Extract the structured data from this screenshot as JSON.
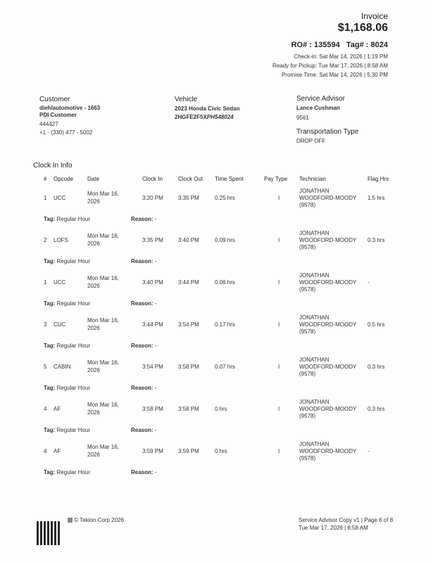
{
  "header": {
    "title": "Invoice",
    "total": "$1,168.06",
    "ro": "RO# : 135594",
    "tag": "Tag# : 8024",
    "check_in": "Check-in: Sat Mar 14, 2026 | 1:19 PM",
    "ready": "Ready for Pickup: Tue Mar 17, 2026 | 8:58 AM",
    "promise": "Promise Time: Sat Mar 14, 2026 | 5:30 PM"
  },
  "customer": {
    "label": "Customer",
    "name": "diehlautomotive - 1663",
    "type": "PDI Customer",
    "id": "444427",
    "phone": "+1 - (330) 477 - 5002"
  },
  "vehicle": {
    "label": "Vehicle",
    "model": "2023 Honda Civic Sedan",
    "vin_prefix": "2HGFE2F5X",
    "vin_suffix": "PH548024"
  },
  "advisor": {
    "label": "Service Advisor",
    "name": "Lance Cushman",
    "id": "9561",
    "transport_label": "Transportation Type",
    "transport": "DROP OFF"
  },
  "clock": {
    "title": "Clock In Info",
    "columns": [
      "#",
      "Opcode",
      "Date",
      "Clock In",
      "Clock Out",
      "Time Spent",
      "Pay Type",
      "Technician",
      "Flag Hrs"
    ],
    "tag_label": "Tag:",
    "reason_label": "Reason:",
    "rows": [
      {
        "num": "1",
        "opcode": "UCC",
        "date1": "Mon Mar 16,",
        "date2": "2026",
        "in": "3:20 PM",
        "out": "3:35 PM",
        "spent": "0.25 hrs",
        "pay": "I",
        "tech1": "JONATHAN",
        "tech2": "WOODFORD-MOODY",
        "tech3": "(9578)",
        "flag": "1.5 hrs",
        "tag": "Regular Hour",
        "reason": "-"
      },
      {
        "num": "2",
        "opcode": "LOFS",
        "date1": "Mon Mar 16,",
        "date2": "2026",
        "in": "3:35 PM",
        "out": "3:40 PM",
        "spent": "0.09 hrs",
        "pay": "I",
        "tech1": "JONATHAN",
        "tech2": "WOODFORD-MOODY",
        "tech3": "(9578)",
        "flag": "0.3 hrs",
        "tag": "Regular Hour",
        "reason": "-"
      },
      {
        "num": "1",
        "opcode": "UCC",
        "date1": "Mon Mar 16,",
        "date2": "2026",
        "in": "3:40 PM",
        "out": "3:44 PM",
        "spent": "0.06 hrs",
        "pay": "I",
        "tech1": "JONATHAN",
        "tech2": "WOODFORD-MOODY",
        "tech3": "(9578)",
        "flag": "-",
        "tag": "Regular Hour",
        "reason": "-"
      },
      {
        "num": "3",
        "opcode": "CUC",
        "date1": "Mon Mar 16,",
        "date2": "2026",
        "in": "3:44 PM",
        "out": "3:54 PM",
        "spent": "0.17 hrs",
        "pay": "I",
        "tech1": "JONATHAN",
        "tech2": "WOODFORD-MOODY",
        "tech3": "(9578)",
        "flag": "0.5 hrs",
        "tag": "Regular Hour",
        "reason": "-"
      },
      {
        "num": "5",
        "opcode": "CABIN",
        "date1": "Mon Mar 16,",
        "date2": "2026",
        "in": "3:54 PM",
        "out": "3:58 PM",
        "spent": "0.07 hrs",
        "pay": "I",
        "tech1": "JONATHAN",
        "tech2": "WOODFORD-MOODY",
        "tech3": "(9578)",
        "flag": "0.3 hrs",
        "tag": "Regular Hour",
        "reason": "-"
      },
      {
        "num": "4",
        "opcode": "AF",
        "date1": "Mon Mar 16,",
        "date2": "2026",
        "in": "3:58 PM",
        "out": "3:58 PM",
        "spent": "0 hrs",
        "pay": "I",
        "tech1": "JONATHAN",
        "tech2": "WOODFORD-MOODY",
        "tech3": "(9578)",
        "flag": "0.3 hrs",
        "tag": "Regular Hour",
        "reason": "-"
      },
      {
        "num": "4",
        "opcode": "AF",
        "date1": "Mon Mar 16,",
        "date2": "2026",
        "in": "3:59 PM",
        "out": "3:59 PM",
        "spent": "0 hrs",
        "pay": "I",
        "tech1": "JONATHAN",
        "tech2": "WOODFORD-MOODY",
        "tech3": "(9578)",
        "flag": "-",
        "tag": "Regular Hour",
        "reason": "-"
      }
    ]
  },
  "footer": {
    "copyright": "© Tekion Corp 2026",
    "copy": "Service Advisor Copy v1 | Page 6 of 8",
    "printed": "Tue Mar 17, 2026 | 8:58 AM"
  }
}
